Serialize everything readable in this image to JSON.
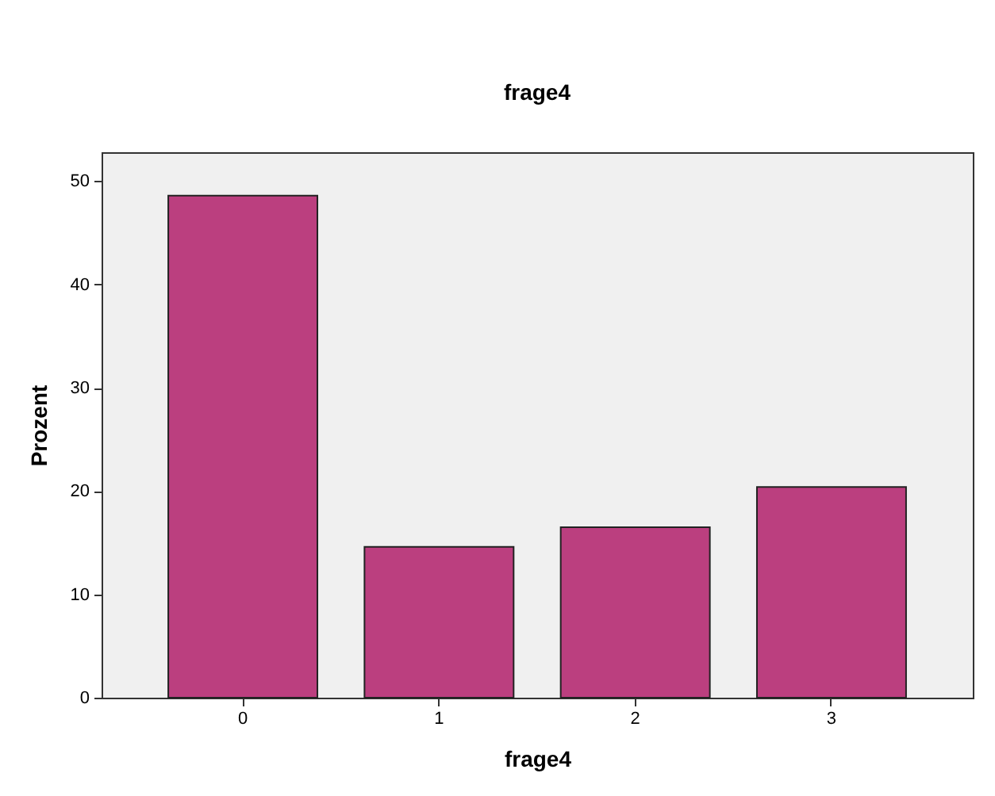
{
  "chart_data": {
    "type": "bar",
    "title": "frage4",
    "xlabel": "frage4",
    "ylabel": "Prozent",
    "categories": [
      "0",
      "1",
      "2",
      "3"
    ],
    "values": [
      48.6,
      14.6,
      16.5,
      20.4
    ],
    "color": "#bb3f7f",
    "ylim": [
      0,
      52.8
    ],
    "yticks": [
      0,
      10,
      20,
      30,
      40,
      50
    ],
    "grid": false
  }
}
